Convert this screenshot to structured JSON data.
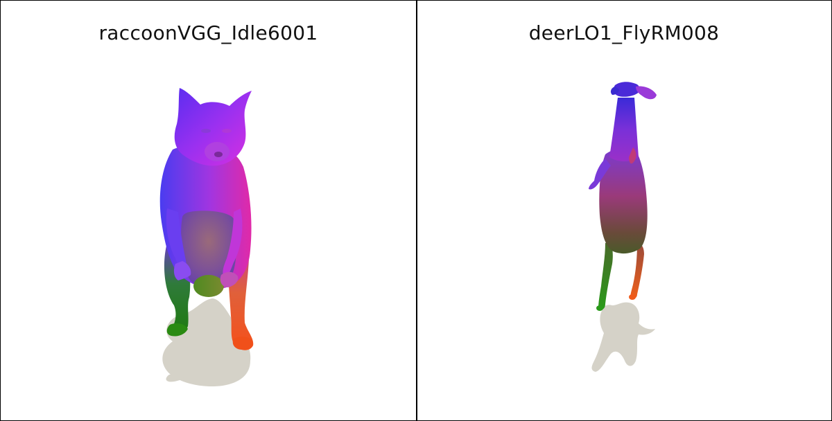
{
  "panels": [
    {
      "title": "raccoonVGG_Idle6001",
      "subject": "raccoon-mesh"
    },
    {
      "title": "deerLO1_FlyRM008",
      "subject": "deer-mesh"
    }
  ],
  "colors": {
    "background": "#ffffff",
    "border": "#000000",
    "shadow": "#d5d2c8",
    "mesh_purple": "#8a2be2",
    "mesh_blue": "#3a3cf0",
    "mesh_magenta": "#e02ad0",
    "mesh_green": "#2e8b1a",
    "mesh_orange": "#f26a1b"
  }
}
